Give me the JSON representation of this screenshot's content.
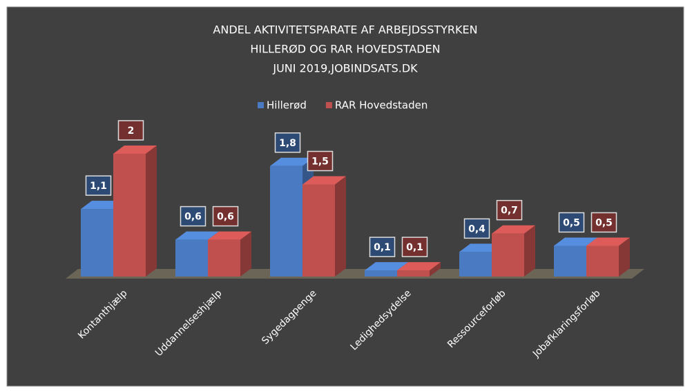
{
  "chart_data": {
    "type": "bar3d",
    "title": [
      "ANDEL  AKTIVITETSPARATE  AF ARBEJDSSTYRKEN",
      "HILLERØD OG RAR HOVEDSTADEN",
      "JUNI 2019,JOBINDSATS.DK"
    ],
    "categories": [
      "Kontanthjælp",
      "Uddannelseshjælp",
      "Sygedagpenge",
      "Ledighedsydelse",
      "Ressourceforløb",
      "Jobafklaringsforløb"
    ],
    "series": [
      {
        "name": "Hillerød",
        "color": "#4a7bc2",
        "values": [
          1.1,
          0.6,
          1.8,
          0.1,
          0.4,
          0.5
        ],
        "value_labels": [
          "1,1",
          "0,6",
          "1,8",
          "0,1",
          "0,4",
          "0,5"
        ]
      },
      {
        "name": "RAR Hovedstaden",
        "color": "#c0504d",
        "values": [
          2,
          0.6,
          1.5,
          0.1,
          0.7,
          0.5
        ],
        "value_labels": [
          "2",
          "0,6",
          "1,5",
          "0,1",
          "0,7",
          "0,5"
        ]
      }
    ],
    "legend": "top"
  }
}
